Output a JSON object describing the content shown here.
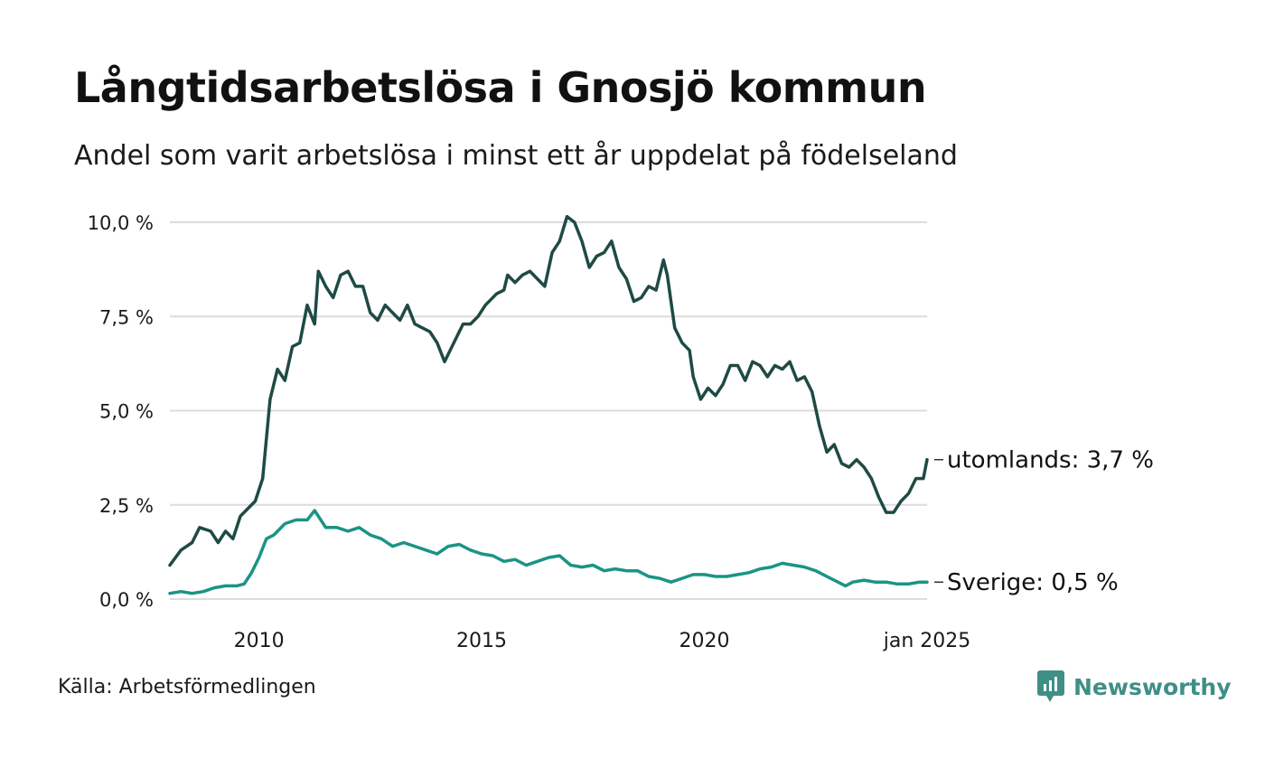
{
  "header": {
    "title": "Långtidsarbetslösa i Gnosjö kommun",
    "subtitle": "Andel som varit arbetslösa i minst ett år uppdelat på födelseland"
  },
  "footer": {
    "source": "Källa: Arbetsförmedlingen",
    "brand": "Newsworthy"
  },
  "colors": {
    "utomlands": "#1f4a44",
    "sverige": "#1a9484",
    "grid": "#dcdcdc",
    "brand": "#3f8f87"
  },
  "chart_data": {
    "type": "line",
    "title": "Långtidsarbetslösa i Gnosjö kommun",
    "subtitle": "Andel som varit arbetslösa i minst ett år uppdelat på födelseland",
    "xlabel": "",
    "ylabel": "",
    "ylim": [
      0,
      10
    ],
    "xlim": [
      "2008-01",
      "2025-01"
    ],
    "yticks": [
      0,
      2.5,
      5,
      7.5,
      10
    ],
    "ytick_labels": [
      "0,0 %",
      "2,5 %",
      "5,0 %",
      "7,5 %",
      "10,0 %"
    ],
    "xticks": [
      "2010-01",
      "2015-01",
      "2020-01",
      "2025-01"
    ],
    "xtick_labels": [
      "2010",
      "2015",
      "2020",
      "jan 2025"
    ],
    "grid": true,
    "series": [
      {
        "name": "utomlands",
        "end_label": "utomlands: 3,7 %",
        "points": [
          [
            "2008-01",
            0.9
          ],
          [
            "2008-04",
            1.3
          ],
          [
            "2008-07",
            1.5
          ],
          [
            "2008-09",
            1.9
          ],
          [
            "2008-12",
            1.8
          ],
          [
            "2009-02",
            1.5
          ],
          [
            "2009-04",
            1.8
          ],
          [
            "2009-06",
            1.6
          ],
          [
            "2009-08",
            2.2
          ],
          [
            "2009-10",
            2.4
          ],
          [
            "2009-12",
            2.6
          ],
          [
            "2010-02",
            3.2
          ],
          [
            "2010-04",
            5.3
          ],
          [
            "2010-06",
            6.1
          ],
          [
            "2010-08",
            5.8
          ],
          [
            "2010-10",
            6.7
          ],
          [
            "2010-12",
            6.8
          ],
          [
            "2011-02",
            7.8
          ],
          [
            "2011-04",
            7.3
          ],
          [
            "2011-05",
            8.7
          ],
          [
            "2011-07",
            8.3
          ],
          [
            "2011-09",
            8.0
          ],
          [
            "2011-11",
            8.6
          ],
          [
            "2012-01",
            8.7
          ],
          [
            "2012-03",
            8.3
          ],
          [
            "2012-05",
            8.3
          ],
          [
            "2012-07",
            7.6
          ],
          [
            "2012-09",
            7.4
          ],
          [
            "2012-11",
            7.8
          ],
          [
            "2013-01",
            7.6
          ],
          [
            "2013-03",
            7.4
          ],
          [
            "2013-05",
            7.8
          ],
          [
            "2013-07",
            7.3
          ],
          [
            "2013-09",
            7.2
          ],
          [
            "2013-11",
            7.1
          ],
          [
            "2014-01",
            6.8
          ],
          [
            "2014-03",
            6.3
          ],
          [
            "2014-05",
            6.7
          ],
          [
            "2014-08",
            7.3
          ],
          [
            "2014-10",
            7.3
          ],
          [
            "2014-12",
            7.5
          ],
          [
            "2015-02",
            7.8
          ],
          [
            "2015-05",
            8.1
          ],
          [
            "2015-07",
            8.2
          ],
          [
            "2015-08",
            8.6
          ],
          [
            "2015-10",
            8.4
          ],
          [
            "2015-12",
            8.6
          ],
          [
            "2016-02",
            8.7
          ],
          [
            "2016-04",
            8.5
          ],
          [
            "2016-06",
            8.3
          ],
          [
            "2016-08",
            9.2
          ],
          [
            "2016-10",
            9.5
          ],
          [
            "2016-12",
            10.15
          ],
          [
            "2017-02",
            10.0
          ],
          [
            "2017-04",
            9.5
          ],
          [
            "2017-06",
            8.8
          ],
          [
            "2017-08",
            9.1
          ],
          [
            "2017-10",
            9.2
          ],
          [
            "2017-12",
            9.5
          ],
          [
            "2018-02",
            8.8
          ],
          [
            "2018-04",
            8.5
          ],
          [
            "2018-06",
            7.9
          ],
          [
            "2018-08",
            8.0
          ],
          [
            "2018-10",
            8.3
          ],
          [
            "2018-12",
            8.2
          ],
          [
            "2019-02",
            9.0
          ],
          [
            "2019-03",
            8.6
          ],
          [
            "2019-05",
            7.2
          ],
          [
            "2019-07",
            6.8
          ],
          [
            "2019-09",
            6.6
          ],
          [
            "2019-10",
            5.9
          ],
          [
            "2019-12",
            5.3
          ],
          [
            "2020-02",
            5.6
          ],
          [
            "2020-04",
            5.4
          ],
          [
            "2020-06",
            5.7
          ],
          [
            "2020-08",
            6.2
          ],
          [
            "2020-10",
            6.2
          ],
          [
            "2020-12",
            5.8
          ],
          [
            "2021-02",
            6.3
          ],
          [
            "2021-04",
            6.2
          ],
          [
            "2021-06",
            5.9
          ],
          [
            "2021-08",
            6.2
          ],
          [
            "2021-10",
            6.1
          ],
          [
            "2021-12",
            6.3
          ],
          [
            "2022-02",
            5.8
          ],
          [
            "2022-04",
            5.9
          ],
          [
            "2022-06",
            5.5
          ],
          [
            "2022-08",
            4.6
          ],
          [
            "2022-10",
            3.9
          ],
          [
            "2022-12",
            4.1
          ],
          [
            "2023-02",
            3.6
          ],
          [
            "2023-04",
            3.5
          ],
          [
            "2023-06",
            3.7
          ],
          [
            "2023-08",
            3.5
          ],
          [
            "2023-10",
            3.2
          ],
          [
            "2023-12",
            2.7
          ],
          [
            "2024-02",
            2.3
          ],
          [
            "2024-04",
            2.3
          ],
          [
            "2024-06",
            2.6
          ],
          [
            "2024-08",
            2.8
          ],
          [
            "2024-10",
            3.2
          ],
          [
            "2024-12",
            3.2
          ],
          [
            "2025-01",
            3.7
          ]
        ]
      },
      {
        "name": "Sverige",
        "end_label": "Sverige: 0,5 %",
        "points": [
          [
            "2008-01",
            0.15
          ],
          [
            "2008-04",
            0.2
          ],
          [
            "2008-07",
            0.15
          ],
          [
            "2008-10",
            0.2
          ],
          [
            "2009-01",
            0.3
          ],
          [
            "2009-04",
            0.35
          ],
          [
            "2009-07",
            0.35
          ],
          [
            "2009-09",
            0.4
          ],
          [
            "2009-11",
            0.7
          ],
          [
            "2010-01",
            1.1
          ],
          [
            "2010-03",
            1.6
          ],
          [
            "2010-05",
            1.7
          ],
          [
            "2010-08",
            2.0
          ],
          [
            "2010-11",
            2.1
          ],
          [
            "2011-02",
            2.1
          ],
          [
            "2011-04",
            2.35
          ],
          [
            "2011-07",
            1.9
          ],
          [
            "2011-10",
            1.9
          ],
          [
            "2012-01",
            1.8
          ],
          [
            "2012-04",
            1.9
          ],
          [
            "2012-07",
            1.7
          ],
          [
            "2012-10",
            1.6
          ],
          [
            "2013-01",
            1.4
          ],
          [
            "2013-04",
            1.5
          ],
          [
            "2013-07",
            1.4
          ],
          [
            "2013-10",
            1.3
          ],
          [
            "2014-01",
            1.2
          ],
          [
            "2014-04",
            1.4
          ],
          [
            "2014-07",
            1.45
          ],
          [
            "2014-10",
            1.3
          ],
          [
            "2015-01",
            1.2
          ],
          [
            "2015-04",
            1.15
          ],
          [
            "2015-07",
            1.0
          ],
          [
            "2015-10",
            1.05
          ],
          [
            "2016-01",
            0.9
          ],
          [
            "2016-04",
            1.0
          ],
          [
            "2016-07",
            1.1
          ],
          [
            "2016-10",
            1.15
          ],
          [
            "2017-01",
            0.9
          ],
          [
            "2017-04",
            0.85
          ],
          [
            "2017-07",
            0.9
          ],
          [
            "2017-10",
            0.75
          ],
          [
            "2018-01",
            0.8
          ],
          [
            "2018-04",
            0.75
          ],
          [
            "2018-07",
            0.75
          ],
          [
            "2018-10",
            0.6
          ],
          [
            "2019-01",
            0.55
          ],
          [
            "2019-04",
            0.45
          ],
          [
            "2019-07",
            0.55
          ],
          [
            "2019-10",
            0.65
          ],
          [
            "2020-01",
            0.65
          ],
          [
            "2020-04",
            0.6
          ],
          [
            "2020-07",
            0.6
          ],
          [
            "2020-10",
            0.65
          ],
          [
            "2021-01",
            0.7
          ],
          [
            "2021-04",
            0.8
          ],
          [
            "2021-07",
            0.85
          ],
          [
            "2021-10",
            0.95
          ],
          [
            "2022-01",
            0.9
          ],
          [
            "2022-04",
            0.85
          ],
          [
            "2022-07",
            0.75
          ],
          [
            "2022-10",
            0.6
          ],
          [
            "2023-01",
            0.45
          ],
          [
            "2023-03",
            0.35
          ],
          [
            "2023-05",
            0.45
          ],
          [
            "2023-08",
            0.5
          ],
          [
            "2023-11",
            0.45
          ],
          [
            "2024-02",
            0.45
          ],
          [
            "2024-05",
            0.4
          ],
          [
            "2024-08",
            0.4
          ],
          [
            "2024-11",
            0.45
          ],
          [
            "2025-01",
            0.45
          ]
        ]
      }
    ]
  }
}
